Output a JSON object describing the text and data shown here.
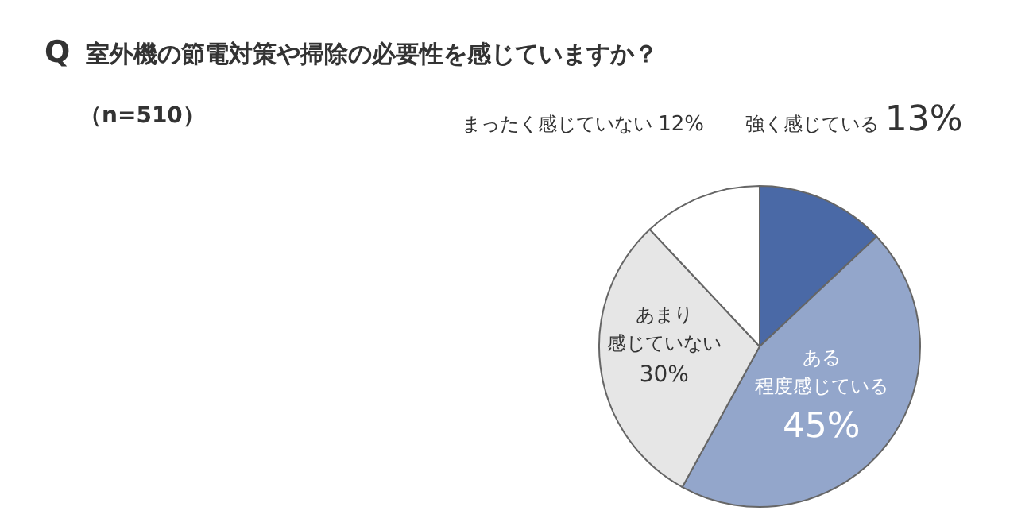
{
  "chart_data": {
    "type": "pie",
    "title": "Q 室外機の節電対策や掃除の必要性を感じていますか？",
    "subtitle": "（n=510）",
    "categories": [
      "強く感じている",
      "ある程度感じている",
      "あまり感じていない",
      "まったく感じていない"
    ],
    "values": [
      13,
      45,
      30,
      12
    ],
    "colors": [
      "#4a69a6",
      "#93a6cb",
      "#e6e6e6",
      "#ffffff"
    ],
    "value_labels": [
      "13%",
      "45%",
      "30%",
      "12%"
    ],
    "legend": false
  }
}
